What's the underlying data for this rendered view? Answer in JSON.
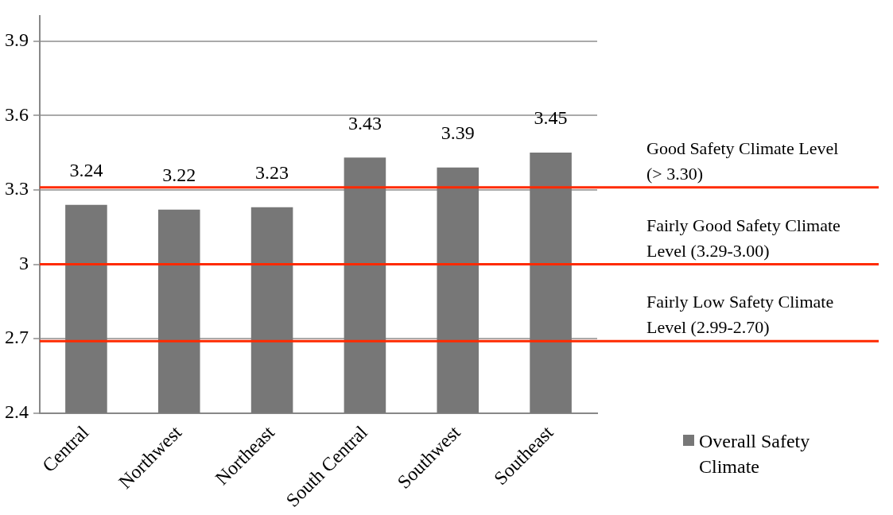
{
  "chart_data": {
    "type": "bar",
    "categories": [
      "Central",
      "Northwest",
      "Northeast",
      "South Central",
      "Southwest",
      "Southeast"
    ],
    "series": [
      {
        "name": "Overall Safety Climate",
        "color": "#777777",
        "values": [
          3.24,
          3.22,
          3.23,
          3.43,
          3.39,
          3.45
        ]
      }
    ],
    "ylim": [
      2.4,
      4.0
    ],
    "yticks": [
      2.4,
      2.7,
      3,
      3.3,
      3.6,
      3.9
    ],
    "grid": "y",
    "data_labels": true,
    "legend": "bottom right",
    "ref_lines": [
      {
        "axis": "y",
        "value": 3.31,
        "label": "Good Safety Climate Level (> 3.30)",
        "color": "#ff2a00"
      },
      {
        "axis": "y",
        "value": 3.0,
        "label": "Fairly Good Safety Climate Level (3.29-3.00)",
        "color": "#ff2a00"
      },
      {
        "axis": "y",
        "value": 2.69,
        "label": "Fairly Low Safety Climate Level (2.99-2.70)",
        "color": "#ff2a00"
      }
    ]
  }
}
